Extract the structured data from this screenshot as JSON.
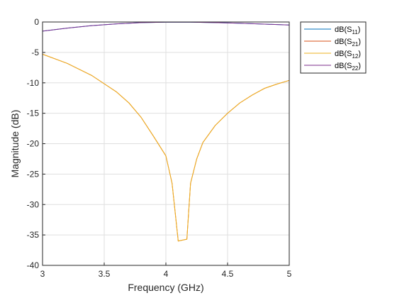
{
  "chart_data": {
    "type": "line",
    "xlabel": "Frequency (GHz)",
    "ylabel": "Magnitude (dB)",
    "xlim": [
      3,
      5
    ],
    "ylim": [
      -40,
      0
    ],
    "xticks": [
      "3",
      "3.5",
      "4",
      "4.5",
      "5"
    ],
    "yticks": [
      "0",
      "-5",
      "-10",
      "-15",
      "-20",
      "-25",
      "-30",
      "-35",
      "-40"
    ],
    "grid": true,
    "legend_position": "outside-top-right",
    "series": [
      {
        "name": "dB(S11)",
        "color": "#0072BD",
        "x": [
          3.0,
          3.2,
          3.4,
          3.6,
          3.8,
          4.0,
          4.2,
          4.4,
          4.6,
          4.8,
          5.0
        ],
        "y": [
          -1.5,
          -1.0,
          -0.6,
          -0.3,
          -0.1,
          -0.02,
          -0.02,
          -0.1,
          -0.2,
          -0.35,
          -0.5
        ]
      },
      {
        "name": "dB(S21)",
        "color": "#D95319",
        "x": [
          3.0,
          3.2,
          3.4,
          3.6,
          3.7,
          3.8,
          3.9,
          4.0,
          4.05,
          4.1,
          4.17,
          4.2,
          4.25,
          4.3,
          4.4,
          4.5,
          4.6,
          4.7,
          4.8,
          4.9,
          5.0
        ],
        "y": [
          -5.3,
          -6.8,
          -8.8,
          -11.5,
          -13.3,
          -15.7,
          -18.8,
          -22.0,
          -26.5,
          -36.0,
          -35.7,
          -26.5,
          -22.5,
          -19.8,
          -17.0,
          -15.0,
          -13.3,
          -12.0,
          -10.9,
          -10.2,
          -9.6
        ]
      },
      {
        "name": "dB(S12)",
        "color": "#EDB120",
        "x": [
          3.0,
          3.2,
          3.4,
          3.6,
          3.7,
          3.8,
          3.9,
          4.0,
          4.05,
          4.1,
          4.17,
          4.2,
          4.25,
          4.3,
          4.4,
          4.5,
          4.6,
          4.7,
          4.8,
          4.9,
          5.0
        ],
        "y": [
          -5.3,
          -6.8,
          -8.8,
          -11.5,
          -13.3,
          -15.7,
          -18.8,
          -22.0,
          -26.5,
          -36.0,
          -35.7,
          -26.5,
          -22.5,
          -19.8,
          -17.0,
          -15.0,
          -13.3,
          -12.0,
          -10.9,
          -10.2,
          -9.6
        ]
      },
      {
        "name": "dB(S22)",
        "color": "#7E2F8E",
        "x": [
          3.0,
          3.2,
          3.4,
          3.6,
          3.8,
          4.0,
          4.2,
          4.4,
          4.6,
          4.8,
          5.0
        ],
        "y": [
          -1.5,
          -1.0,
          -0.6,
          -0.3,
          -0.1,
          -0.02,
          -0.02,
          -0.1,
          -0.2,
          -0.35,
          -0.5
        ]
      }
    ],
    "legend": [
      {
        "base": "dB(S",
        "sub": "11",
        "end": ")"
      },
      {
        "base": "dB(S",
        "sub": "21",
        "end": ")"
      },
      {
        "base": "dB(S",
        "sub": "12",
        "end": ")"
      },
      {
        "base": "dB(S",
        "sub": "22",
        "end": ")"
      }
    ]
  }
}
